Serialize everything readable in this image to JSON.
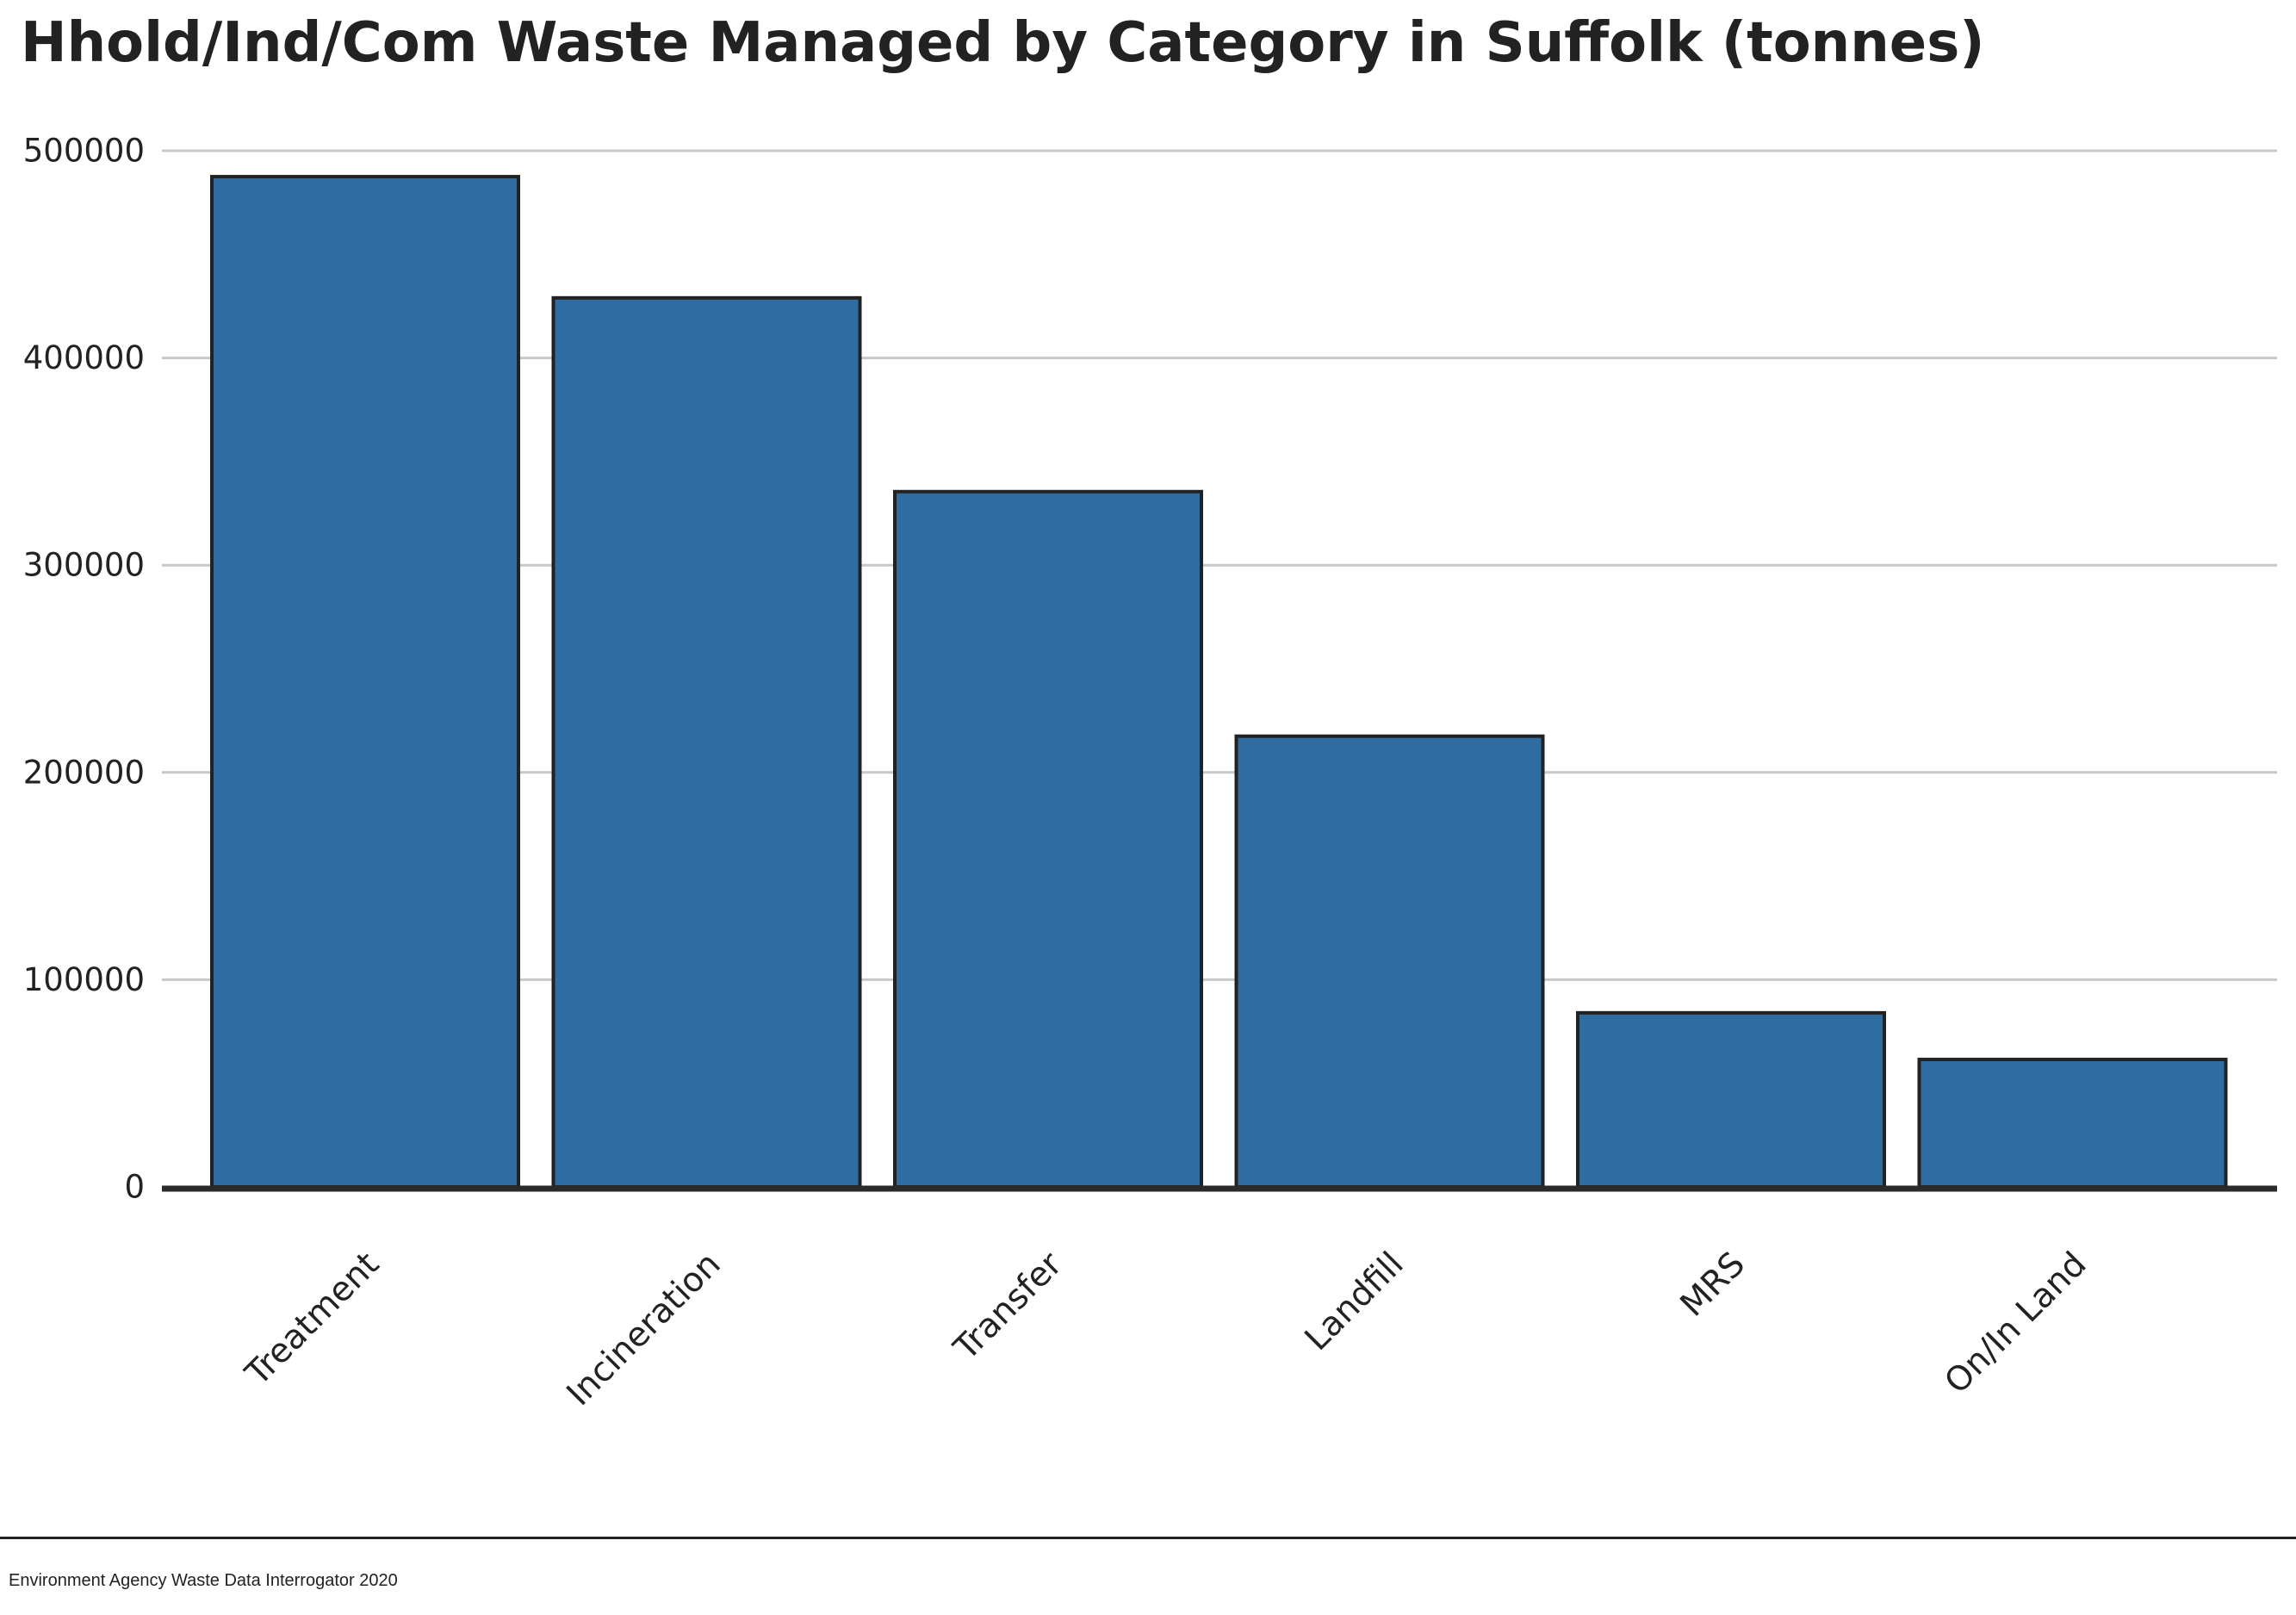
{
  "chart_data": {
    "type": "bar",
    "title": "Hhold/Ind/Com Waste Managed by Category in Suffolk (tonnes)",
    "xlabel": "",
    "ylabel": "",
    "categories": [
      "Treatment",
      "Incineration",
      "Transfer",
      "Landfill",
      "MRS",
      "On/In Land"
    ],
    "values": [
      487500,
      429000,
      335500,
      217500,
      84000,
      61500
    ],
    "ylim": [
      0,
      500000
    ],
    "yticks": [
      0,
      100000,
      200000,
      300000,
      400000,
      500000
    ],
    "grid": "horizontal",
    "bar_color": "#2e6ca2",
    "bar_edge_color": "#222222",
    "gridline_color": "#c8c8c8"
  },
  "source": "Environment Agency Waste Data Interrogator 2020"
}
